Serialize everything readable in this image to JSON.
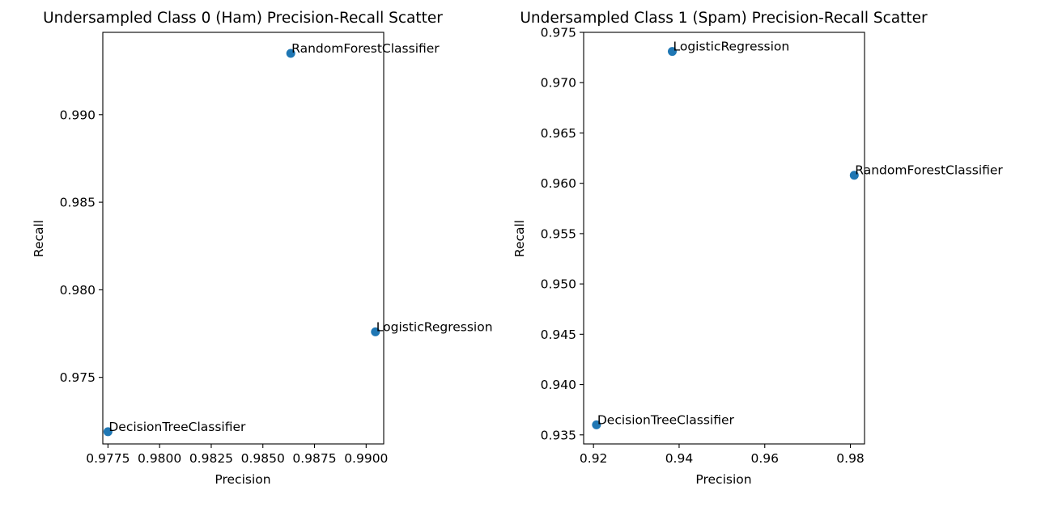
{
  "chart_data": [
    {
      "type": "scatter",
      "title": "Undersampled Class 0 (Ham) Precision-Recall Scatter",
      "xlabel": "Precision",
      "ylabel": "Recall",
      "xlim": [
        0.97725,
        0.99085
      ],
      "ylim": [
        0.9712,
        0.9947
      ],
      "xticks": [
        0.9775,
        0.98,
        0.9825,
        0.985,
        0.9875,
        0.99
      ],
      "xtick_labels": [
        "0.9775",
        "0.9800",
        "0.9825",
        "0.9850",
        "0.9875",
        "0.9900"
      ],
      "yticks": [
        0.975,
        0.98,
        0.985,
        0.99
      ],
      "ytick_labels": [
        "0.975",
        "0.980",
        "0.985",
        "0.990"
      ],
      "grid": false,
      "color": "#1f77b4",
      "points": [
        {
          "label": "RandomForestClassifier",
          "x": 0.98635,
          "y": 0.9935
        },
        {
          "label": "LogisticRegression",
          "x": 0.99045,
          "y": 0.9776
        },
        {
          "label": "DecisionTreeClassifier",
          "x": 0.9775,
          "y": 0.9719
        }
      ]
    },
    {
      "type": "scatter",
      "title": "Undersampled Class 1 (Spam) Precision-Recall Scatter",
      "xlabel": "Precision",
      "ylabel": "Recall",
      "xlim": [
        0.9177,
        0.9833
      ],
      "ylim": [
        0.9341,
        0.975
      ],
      "xticks": [
        0.92,
        0.94,
        0.96,
        0.98
      ],
      "xtick_labels": [
        "0.92",
        "0.94",
        "0.96",
        "0.98"
      ],
      "yticks": [
        0.935,
        0.94,
        0.945,
        0.95,
        0.955,
        0.96,
        0.965,
        0.97,
        0.975
      ],
      "ytick_labels": [
        "0.935",
        "0.940",
        "0.945",
        "0.950",
        "0.955",
        "0.960",
        "0.965",
        "0.970",
        "0.975"
      ],
      "grid": false,
      "color": "#1f77b4",
      "points": [
        {
          "label": "LogisticRegression",
          "x": 0.9384,
          "y": 0.9731
        },
        {
          "label": "RandomForestClassifier",
          "x": 0.9809,
          "y": 0.9608
        },
        {
          "label": "DecisionTreeClassifier",
          "x": 0.9207,
          "y": 0.936
        }
      ]
    }
  ]
}
